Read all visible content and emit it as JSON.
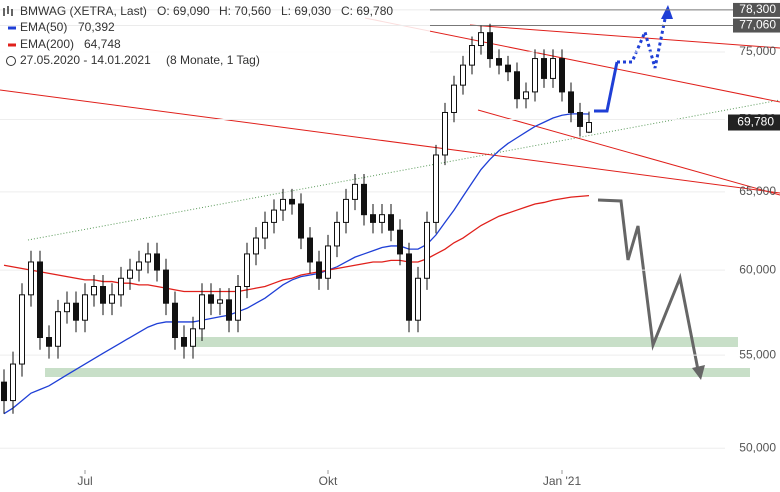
{
  "chart_data": {
    "type": "candlestick",
    "title": "BMWAG (XETRA, Last)",
    "ohlc_labels": [
      "O: 69,090",
      "H: 70,560",
      "L: 69,030",
      "C: 69,780"
    ],
    "date_range": "27.05.2020 - 14.01.2021",
    "period": "(8 Monate, 1 Tag)",
    "log_scale": true,
    "ylim": [
      48900,
      79100
    ],
    "yticks": [
      {
        "value": 50000,
        "label": "50,000"
      },
      {
        "value": 55000,
        "label": "55,000"
      },
      {
        "value": 60000,
        "label": "60,000"
      },
      {
        "value": 65000,
        "label": "65,000"
      },
      {
        "value": 70000,
        "label": "70,000"
      },
      {
        "value": 75000,
        "label": "75,000"
      }
    ],
    "levels": [
      {
        "value": 78300,
        "label": "78,300"
      },
      {
        "value": 77060,
        "label": "77,060"
      }
    ],
    "last_price": {
      "value": 69780,
      "label": "69,780"
    },
    "categories": [
      null,
      null,
      null,
      null,
      null,
      null,
      null,
      null,
      null,
      "Jul",
      null,
      null,
      null,
      null,
      null,
      null,
      null,
      null,
      null,
      null,
      null,
      null,
      null,
      null,
      null,
      null,
      null,
      null,
      null,
      null,
      null,
      null,
      null,
      null,
      null,
      null,
      "Okt",
      null,
      null,
      null,
      null,
      null,
      null,
      null,
      null,
      null,
      null,
      null,
      null,
      null,
      null,
      null,
      null,
      null,
      null,
      null,
      null,
      null,
      null,
      null,
      null,
      null,
      "Jan '21",
      null,
      null,
      null
    ],
    "open": [
      53500,
      52500,
      54500,
      58500,
      60500,
      56000,
      55500,
      57500,
      58000,
      57000,
      58500,
      59000,
      58000,
      58500,
      59500,
      60000,
      60500,
      61000,
      60000,
      58000,
      56000,
      55500,
      56500,
      58500,
      58000,
      58200,
      57000,
      59000,
      61000,
      62000,
      63000,
      63800,
      64500,
      64200,
      62000,
      60500,
      59500,
      61500,
      63000,
      64500,
      65500,
      63500,
      63000,
      63500,
      62500,
      61000,
      57000,
      59500,
      63000,
      67500,
      70500,
      72500,
      74000,
      75500,
      76500,
      74500,
      74000,
      73500,
      71500,
      72000,
      74500,
      73000,
      74500,
      72000,
      70500,
      69090
    ],
    "high": [
      54200,
      55200,
      59200,
      61200,
      61200,
      56700,
      58200,
      58700,
      58700,
      59200,
      59700,
      59700,
      59200,
      60200,
      60700,
      61200,
      61700,
      61700,
      60700,
      58700,
      56700,
      57200,
      59200,
      59200,
      58900,
      58900,
      59700,
      61700,
      62700,
      63700,
      64500,
      65200,
      65200,
      64900,
      62700,
      61200,
      62200,
      63700,
      65200,
      66200,
      66200,
      64200,
      64200,
      64200,
      63200,
      61700,
      60200,
      63700,
      68200,
      71200,
      73200,
      74700,
      76200,
      77060,
      77200,
      75200,
      74700,
      74200,
      72700,
      75200,
      75200,
      75200,
      75200,
      72700,
      71200,
      70560
    ],
    "low": [
      51800,
      51800,
      53800,
      57800,
      55300,
      54800,
      54800,
      56800,
      56300,
      56300,
      57800,
      57300,
      57300,
      57800,
      58800,
      59300,
      59800,
      59300,
      57300,
      55300,
      54800,
      54800,
      55800,
      57300,
      57300,
      56300,
      56300,
      58300,
      60300,
      61300,
      62300,
      63100,
      63500,
      61300,
      59800,
      58800,
      58800,
      60800,
      62300,
      63800,
      62800,
      62300,
      62300,
      61800,
      60300,
      56300,
      56300,
      58800,
      62300,
      66800,
      69800,
      71800,
      73300,
      74800,
      73800,
      73300,
      72800,
      70800,
      70800,
      71300,
      72300,
      72300,
      71300,
      69800,
      68800,
      69030
    ],
    "close": [
      52500,
      54500,
      58500,
      60500,
      56000,
      55500,
      57500,
      58000,
      57000,
      58500,
      59000,
      58000,
      58500,
      59500,
      60000,
      60500,
      61000,
      60000,
      58000,
      56000,
      55500,
      56500,
      58500,
      58000,
      58200,
      57000,
      59000,
      61000,
      62000,
      63000,
      63800,
      64500,
      64200,
      62000,
      60500,
      59500,
      61500,
      63000,
      64500,
      65500,
      63500,
      63000,
      63500,
      62500,
      61000,
      57000,
      59500,
      63000,
      67500,
      70500,
      72500,
      74000,
      75500,
      76500,
      74500,
      74000,
      73500,
      71500,
      72000,
      74500,
      73000,
      74500,
      72000,
      70500,
      69500,
      69780
    ],
    "series": [
      {
        "name": "EMA(50)",
        "last_label": "70,392",
        "color": "#1f3fd6",
        "values": [
          51800,
          52100,
          52500,
          52900,
          53100,
          53300,
          53600,
          53900,
          54200,
          54500,
          54800,
          55100,
          55400,
          55700,
          56000,
          56300,
          56600,
          56800,
          56900,
          56900,
          56900,
          56900,
          57000,
          57100,
          57200,
          57300,
          57500,
          57700,
          58000,
          58300,
          58700,
          59100,
          59400,
          59600,
          59700,
          59800,
          60000,
          60200,
          60500,
          60800,
          61000,
          61200,
          61400,
          61500,
          61500,
          61300,
          61300,
          61600,
          62200,
          63000,
          63800,
          64700,
          65600,
          66500,
          67200,
          67800,
          68300,
          68700,
          69100,
          69500,
          69800,
          70100,
          70300,
          70400,
          70400,
          70392
        ]
      },
      {
        "name": "EMA(200)",
        "last_label": "64,748",
        "color": "#e0201b",
        "values": [
          60300,
          60200,
          60100,
          60000,
          59900,
          59800,
          59700,
          59600,
          59500,
          59400,
          59400,
          59300,
          59300,
          59200,
          59200,
          59100,
          59100,
          59000,
          58900,
          58800,
          58700,
          58700,
          58700,
          58700,
          58700,
          58700,
          58700,
          58800,
          58900,
          59000,
          59200,
          59400,
          59500,
          59700,
          59800,
          59900,
          60000,
          60100,
          60200,
          60300,
          60400,
          60500,
          60500,
          60600,
          60600,
          60500,
          60500,
          60700,
          61000,
          61300,
          61700,
          62000,
          62400,
          62800,
          63100,
          63400,
          63600,
          63800,
          64000,
          64200,
          64300,
          64450,
          64550,
          64650,
          64700,
          64748
        ]
      }
    ]
  }
}
